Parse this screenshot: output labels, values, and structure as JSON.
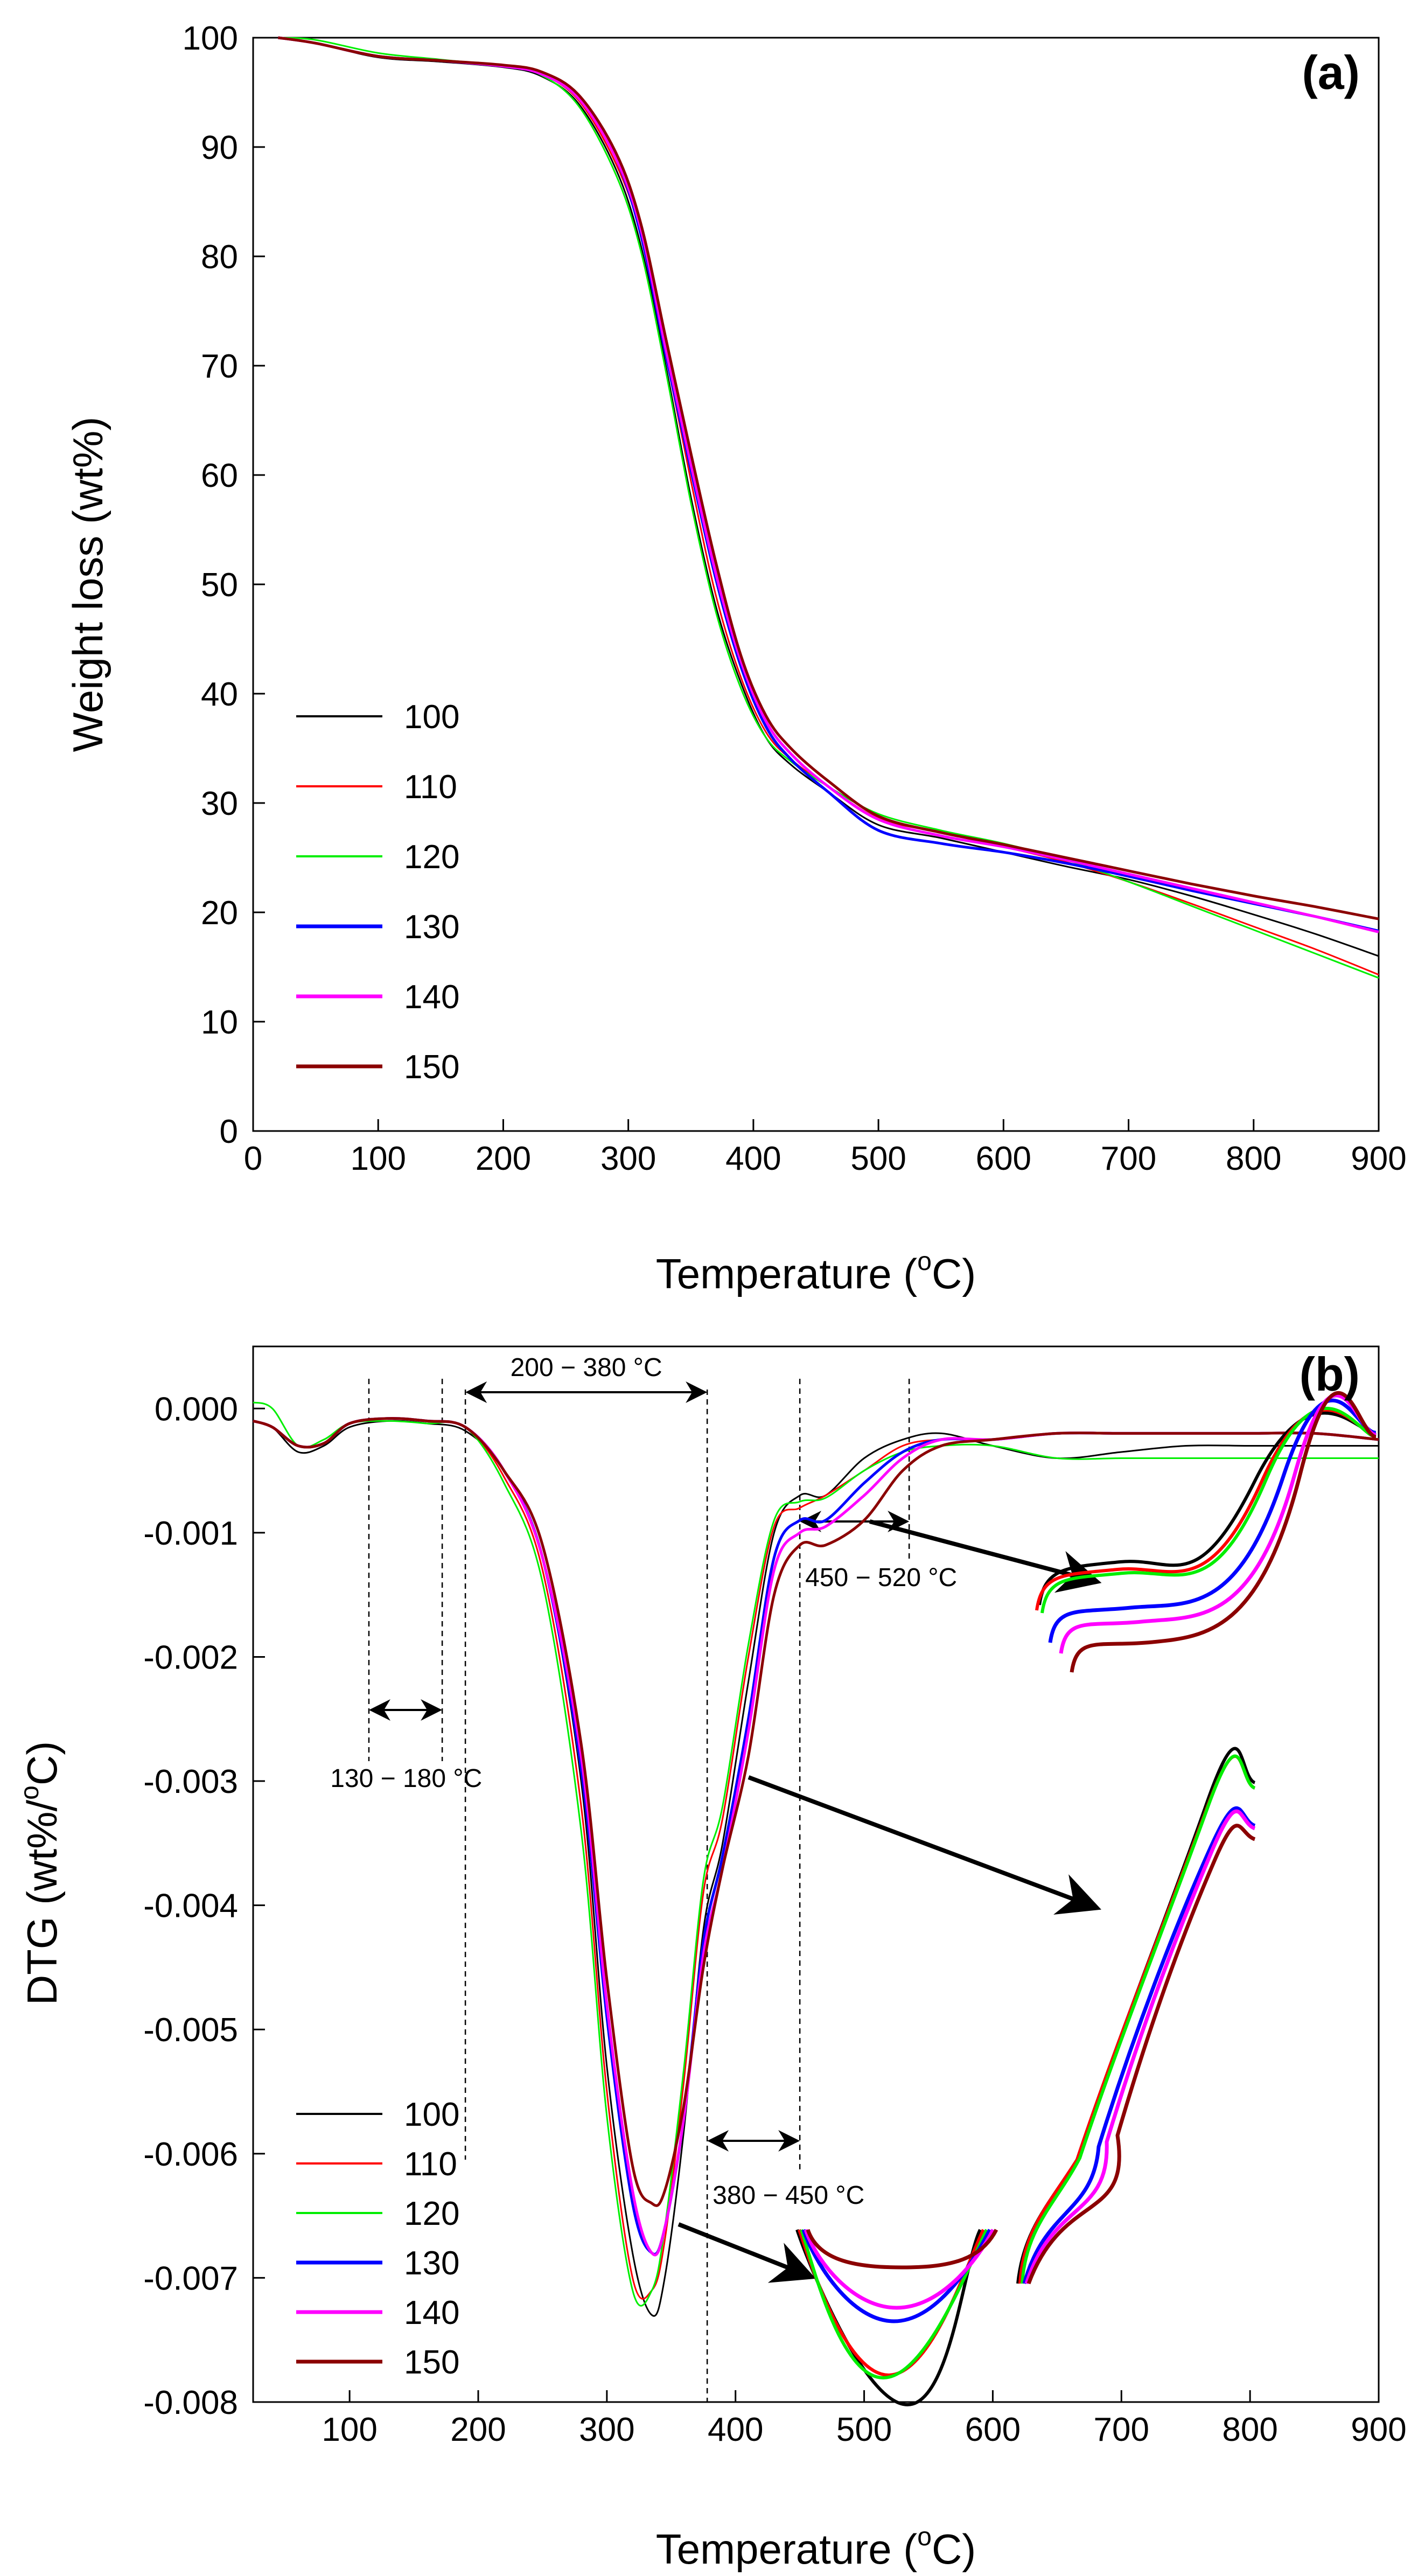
{
  "chart_data": [
    {
      "type": "line",
      "panel_label": "(a)",
      "xlabel": "Temperature (",
      "xlabel_sup": "o",
      "xlabel_end": "C)",
      "ylabel": "Weight loss (wt%)",
      "xlim": [
        0,
        900
      ],
      "ylim": [
        0,
        100
      ],
      "xticks": [
        0,
        100,
        200,
        300,
        400,
        500,
        600,
        700,
        800,
        900
      ],
      "yticks": [
        0,
        10,
        20,
        30,
        40,
        50,
        60,
        70,
        80,
        90,
        100
      ],
      "legend_position": "bottom-left",
      "series": [
        {
          "name": "100",
          "color": "#000000",
          "x": [
            20,
            50,
            100,
            150,
            200,
            230,
            260,
            290,
            310,
            330,
            350,
            370,
            390,
            410,
            430,
            460,
            500,
            550,
            600,
            650,
            700,
            750,
            800,
            850,
            900
          ],
          "y": [
            100,
            99.5,
            98.2,
            97.8,
            97.3,
            96.5,
            94,
            88,
            81,
            70,
            58,
            48,
            41,
            36,
            33.5,
            31,
            28,
            26.8,
            25.5,
            24.2,
            23,
            21.5,
            19.8,
            18,
            16
          ]
        },
        {
          "name": "110",
          "color": "#ff0000",
          "x": [
            20,
            50,
            100,
            150,
            200,
            230,
            260,
            290,
            310,
            330,
            350,
            370,
            390,
            410,
            430,
            460,
            500,
            550,
            600,
            650,
            700,
            750,
            800,
            850,
            900
          ],
          "y": [
            100,
            99.5,
            98.3,
            97.9,
            97.4,
            96.7,
            94.3,
            88.5,
            82,
            71,
            59.5,
            49,
            41.5,
            36.5,
            34,
            31.5,
            28.6,
            27.3,
            26,
            24.6,
            22.8,
            20.8,
            18.7,
            16.6,
            14.3
          ]
        },
        {
          "name": "120",
          "color": "#00ee00",
          "x": [
            20,
            50,
            100,
            150,
            200,
            230,
            260,
            290,
            310,
            330,
            350,
            370,
            390,
            410,
            430,
            460,
            500,
            550,
            600,
            650,
            700,
            750,
            800,
            850,
            900
          ],
          "y": [
            100,
            99.8,
            98.6,
            98,
            97.4,
            96.6,
            93.8,
            87.5,
            80.5,
            69.5,
            57.5,
            47.5,
            40.5,
            36,
            33.8,
            31.5,
            29,
            27.5,
            26.3,
            24.8,
            22.8,
            20.6,
            18.4,
            16.2,
            14
          ]
        },
        {
          "name": "130",
          "color": "#0000ff",
          "x": [
            20,
            50,
            100,
            150,
            200,
            230,
            260,
            290,
            310,
            330,
            350,
            370,
            390,
            410,
            430,
            460,
            500,
            550,
            600,
            650,
            700,
            750,
            800,
            850,
            900
          ],
          "y": [
            100,
            99.5,
            98.3,
            97.9,
            97.4,
            96.7,
            94.5,
            89,
            82,
            71,
            60.5,
            50.5,
            42.5,
            37,
            34,
            31,
            27.5,
            26.3,
            25.5,
            24.5,
            23.3,
            22,
            20.8,
            19.6,
            18.3
          ]
        },
        {
          "name": "140",
          "color": "#ff00ff",
          "x": [
            20,
            50,
            100,
            150,
            200,
            230,
            260,
            290,
            310,
            330,
            350,
            370,
            390,
            410,
            430,
            460,
            500,
            550,
            600,
            650,
            700,
            750,
            800,
            850,
            900
          ],
          "y": [
            100,
            99.5,
            98.3,
            97.9,
            97.4,
            96.7,
            94.5,
            89,
            82.5,
            71.5,
            61,
            51,
            43,
            37.5,
            34.5,
            31.5,
            28.5,
            27,
            26,
            24.8,
            23.5,
            22.2,
            20.9,
            19.6,
            18.2
          ]
        },
        {
          "name": "150",
          "color": "#8b0000",
          "x": [
            20,
            50,
            100,
            150,
            200,
            230,
            260,
            290,
            310,
            330,
            350,
            370,
            390,
            410,
            430,
            460,
            500,
            550,
            600,
            650,
            700,
            750,
            800,
            850,
            900
          ],
          "y": [
            100,
            99.5,
            98.3,
            97.9,
            97.5,
            96.9,
            94.8,
            89.5,
            83,
            72.5,
            62,
            52,
            43.5,
            38,
            35,
            32,
            28.8,
            27.3,
            26.2,
            25,
            23.8,
            22.6,
            21.5,
            20.5,
            19.4
          ]
        }
      ]
    },
    {
      "type": "line",
      "panel_label": "(b)",
      "xlabel": "Temperature (",
      "xlabel_sup": "o",
      "xlabel_end": "C)",
      "ylabel": "DTG (wt%/",
      "ylabel_sup": "o",
      "ylabel_end": "C)",
      "xlim": [
        25,
        900
      ],
      "ylim": [
        -0.008,
        0.0005
      ],
      "xticks": [
        100,
        200,
        300,
        400,
        500,
        600,
        700,
        800,
        900
      ],
      "yticks": [
        0.0,
        -0.001,
        -0.002,
        -0.003,
        -0.004,
        -0.005,
        -0.006,
        -0.007,
        -0.008
      ],
      "ytick_labels": [
        "0.000",
        "-0.001",
        "-0.002",
        "-0.003",
        "-0.004",
        "-0.005",
        "-0.006",
        "-0.007",
        "-0.008"
      ],
      "legend_position": "bottom-left",
      "annotations": [
        {
          "text": "130 − 180 °C",
          "from": 115,
          "to": 172
        },
        {
          "text": "200 − 380 °C",
          "from": 190,
          "to": 378
        },
        {
          "text": "380 − 450 °C",
          "from": 378,
          "to": 450
        },
        {
          "text": "450 − 520 °C",
          "from": 450,
          "to": 535
        }
      ],
      "series": [
        {
          "name": "100",
          "color": "#000000",
          "x": [
            25,
            40,
            60,
            80,
            100,
            130,
            160,
            190,
            220,
            250,
            280,
            300,
            320,
            335,
            345,
            360,
            375,
            390,
            410,
            430,
            450,
            470,
            500,
            530,
            560,
            600,
            650,
            700,
            750,
            800,
            850,
            900
          ],
          "y": [
            -0.0001,
            -0.00015,
            -0.00035,
            -0.0003,
            -0.00015,
            -0.0001,
            -0.00012,
            -0.00018,
            -0.0005,
            -0.0012,
            -0.003,
            -0.0053,
            -0.0068,
            -0.0073,
            -0.007,
            -0.0058,
            -0.0042,
            -0.0035,
            -0.0022,
            -0.001,
            -0.0007,
            -0.0007,
            -0.0004,
            -0.00025,
            -0.0002,
            -0.0003,
            -0.0004,
            -0.00035,
            -0.0003,
            -0.0003,
            -0.0003,
            -0.0003
          ]
        },
        {
          "name": "110",
          "color": "#ff0000",
          "x": [
            25,
            40,
            60,
            80,
            100,
            130,
            160,
            190,
            220,
            250,
            280,
            300,
            320,
            335,
            345,
            360,
            375,
            390,
            410,
            430,
            450,
            470,
            500,
            530,
            560,
            600,
            650,
            700,
            750,
            800,
            850,
            900
          ],
          "y": [
            -0.0001,
            -0.00015,
            -0.0003,
            -0.00028,
            -0.00012,
            -8e-05,
            -0.0001,
            -0.00015,
            -0.00055,
            -0.0013,
            -0.0032,
            -0.0055,
            -0.007,
            -0.0071,
            -0.0067,
            -0.0054,
            -0.0039,
            -0.0033,
            -0.002,
            -0.00095,
            -0.0008,
            -0.0007,
            -0.0005,
            -0.0003,
            -0.00025,
            -0.00025,
            -0.0002,
            -0.0002,
            -0.0002,
            -0.0002,
            -0.0002,
            -0.00025
          ]
        },
        {
          "name": "120",
          "color": "#00ee00",
          "x": [
            25,
            40,
            60,
            80,
            100,
            130,
            160,
            190,
            220,
            250,
            280,
            300,
            320,
            335,
            345,
            360,
            375,
            390,
            410,
            430,
            450,
            470,
            500,
            530,
            560,
            600,
            650,
            700,
            750,
            800,
            850,
            900
          ],
          "y": [
            5e-05,
            0.0,
            -0.0003,
            -0.00025,
            -0.00012,
            -0.0001,
            -0.00012,
            -0.00015,
            -0.0006,
            -0.0014,
            -0.0034,
            -0.0057,
            -0.0071,
            -0.0071,
            -0.0066,
            -0.0053,
            -0.0038,
            -0.0032,
            -0.0019,
            -0.0009,
            -0.00075,
            -0.00072,
            -0.0005,
            -0.00035,
            -0.0003,
            -0.0003,
            -0.0004,
            -0.0004,
            -0.0004,
            -0.0004,
            -0.0004,
            -0.0004
          ]
        },
        {
          "name": "130",
          "color": "#0000ff",
          "x": [
            25,
            40,
            60,
            80,
            100,
            130,
            160,
            190,
            220,
            250,
            280,
            300,
            320,
            335,
            345,
            360,
            375,
            390,
            410,
            430,
            450,
            470,
            500,
            530,
            560,
            600,
            650,
            700,
            750,
            800,
            850,
            900
          ],
          "y": [
            -0.0001,
            -0.00015,
            -0.0003,
            -0.00028,
            -0.00012,
            -8e-05,
            -0.0001,
            -0.00015,
            -0.0005,
            -0.0012,
            -0.0029,
            -0.0049,
            -0.0064,
            -0.0068,
            -0.0066,
            -0.0057,
            -0.0043,
            -0.0036,
            -0.0025,
            -0.0012,
            -0.0009,
            -0.0009,
            -0.0006,
            -0.00035,
            -0.00025,
            -0.00025,
            -0.0002,
            -0.0002,
            -0.0002,
            -0.0002,
            -0.0002,
            -0.00025
          ]
        },
        {
          "name": "140",
          "color": "#ff00ff",
          "x": [
            25,
            40,
            60,
            80,
            100,
            130,
            160,
            190,
            220,
            250,
            280,
            300,
            320,
            335,
            345,
            360,
            375,
            390,
            410,
            430,
            450,
            470,
            500,
            530,
            560,
            600,
            650,
            700,
            750,
            800,
            850,
            900
          ],
          "y": [
            -0.0001,
            -0.00015,
            -0.0003,
            -0.00028,
            -0.00012,
            -8e-05,
            -0.0001,
            -0.00015,
            -0.0005,
            -0.0012,
            -0.0028,
            -0.0048,
            -0.0063,
            -0.0068,
            -0.0066,
            -0.0057,
            -0.0044,
            -0.0037,
            -0.0026,
            -0.0013,
            -0.001,
            -0.00095,
            -0.0007,
            -0.0004,
            -0.00025,
            -0.00025,
            -0.0002,
            -0.0002,
            -0.0002,
            -0.0002,
            -0.0002,
            -0.00025
          ]
        },
        {
          "name": "150",
          "color": "#8b0000",
          "x": [
            25,
            40,
            60,
            80,
            100,
            130,
            160,
            190,
            220,
            250,
            280,
            300,
            320,
            335,
            345,
            360,
            375,
            390,
            410,
            430,
            450,
            470,
            500,
            530,
            560,
            600,
            650,
            700,
            750,
            800,
            850,
            900
          ],
          "y": [
            -0.0001,
            -0.00015,
            -0.0003,
            -0.00028,
            -0.00012,
            -8e-05,
            -0.0001,
            -0.00015,
            -0.0005,
            -0.0011,
            -0.0027,
            -0.0046,
            -0.0061,
            -0.0064,
            -0.0063,
            -0.0056,
            -0.0045,
            -0.0037,
            -0.0028,
            -0.0015,
            -0.0011,
            -0.0011,
            -0.0009,
            -0.0005,
            -0.0003,
            -0.00025,
            -0.0002,
            -0.0002,
            -0.0002,
            -0.0002,
            -0.0002,
            -0.00025
          ]
        }
      ]
    }
  ]
}
